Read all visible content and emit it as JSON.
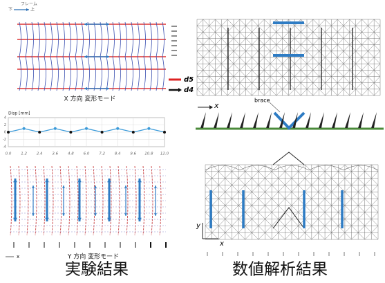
{
  "top_left": {
    "frame": "フレーム",
    "lower": "下",
    "upper": "上",
    "caption": "X 方向 変形モード",
    "d5": "d5",
    "d4": "d4"
  },
  "chart_data": {
    "type": "line",
    "title": "Disp [mm]",
    "x": [
      0,
      1.2,
      2.4,
      3.6,
      4.8,
      6.0,
      7.2,
      8.4,
      9.6,
      10.8,
      12.0
    ],
    "values": [
      0,
      1,
      0,
      1,
      0,
      1,
      0,
      1,
      0,
      1,
      0
    ],
    "color": "#3a9ad9",
    "xlim": [
      0,
      12
    ],
    "xticks": [
      {
        "value": 0,
        "label": "0.0"
      },
      1.2,
      2.4,
      3.6,
      4.8,
      {
        "value": 6,
        "label": "6.0"
      },
      7.2,
      8.4,
      9.6,
      10.8,
      {
        "value": 12,
        "label": "12.0"
      }
    ],
    "ylim": [
      -4,
      4
    ],
    "yticks": [
      -4,
      -2,
      0,
      2,
      4
    ],
    "grid": true
  },
  "bottom_left": {
    "caption": "Y 方向 変形モード",
    "axis_x": "x"
  },
  "right": {
    "brace": "brace",
    "axis_x_top": "x",
    "axis_y": "y",
    "axis_x_bottom": "x"
  },
  "captions": {
    "experiment": "実験結果",
    "analysis": "数値解析結果"
  }
}
